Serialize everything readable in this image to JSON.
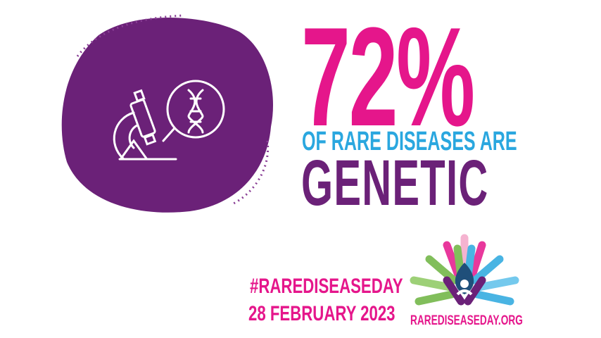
{
  "stat": {
    "value": "72%",
    "line1": "OF RARE DISEASES ARE",
    "line2": "GENETIC"
  },
  "footer": {
    "hashtag": "#RAREDISEASEDAY",
    "date": "28 FEBRUARY 2023"
  },
  "logo": {
    "text": "RAREDISEASEDAY.ORG"
  },
  "icons": [
    "microscope-icon",
    "dna-magnifier-icon"
  ],
  "colors": {
    "purple": "#6b2178",
    "pink": "#e5168b",
    "blue": "#2aa7df",
    "green": "#6cb33f"
  }
}
